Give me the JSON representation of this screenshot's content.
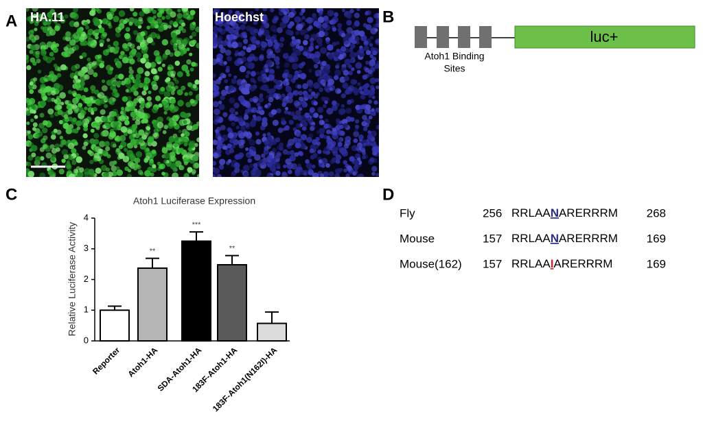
{
  "panels": {
    "a": {
      "label": "A",
      "images": [
        "HA.11",
        "Hoechst"
      ]
    },
    "b": {
      "label": "B",
      "sites_label": [
        "Atoh1 Binding",
        "Sites"
      ],
      "gene": "luc+"
    },
    "c": {
      "label": "C"
    },
    "d": {
      "label": "D",
      "rows": [
        {
          "name": "Fly",
          "start": "256",
          "before": "RRLAA",
          "residue": "N",
          "after": "ARERRRM",
          "end": "268",
          "residue_color": "#2b2b8c"
        },
        {
          "name": "Mouse",
          "start": "157",
          "before": "RRLAA",
          "residue": "N",
          "after": "ARERRRM",
          "end": "169",
          "residue_color": "#2b2b8c"
        },
        {
          "name": "Mouse(162)",
          "start": "157",
          "before": "RRLAA",
          "residue": "I",
          "after": "ARERRRM",
          "end": "169",
          "residue_color": "#e02020"
        }
      ]
    }
  },
  "chart_data": {
    "type": "bar",
    "title": "Atoh1 Luciferase Expression",
    "y_label": "Relative Luciferase Activity",
    "categories": [
      "Reporter",
      "Atoh1-HA",
      "SDA-Atoh1-HA",
      "183F-Atoh1-HA",
      "183F-Atoh1(N162I)-HA"
    ],
    "values": [
      1.0,
      2.37,
      3.25,
      2.48,
      0.57
    ],
    "errors": [
      0.13,
      0.32,
      0.3,
      0.3,
      0.37
    ],
    "significance": [
      null,
      "**",
      "***",
      "**",
      null
    ],
    "colors": [
      "#ffffff",
      "#b5b5b5",
      "#000000",
      "#5a5a5a",
      "#dcdcdc"
    ],
    "ylim": [
      0,
      4
    ],
    "yticks": [
      0,
      1,
      2,
      3,
      4
    ]
  }
}
